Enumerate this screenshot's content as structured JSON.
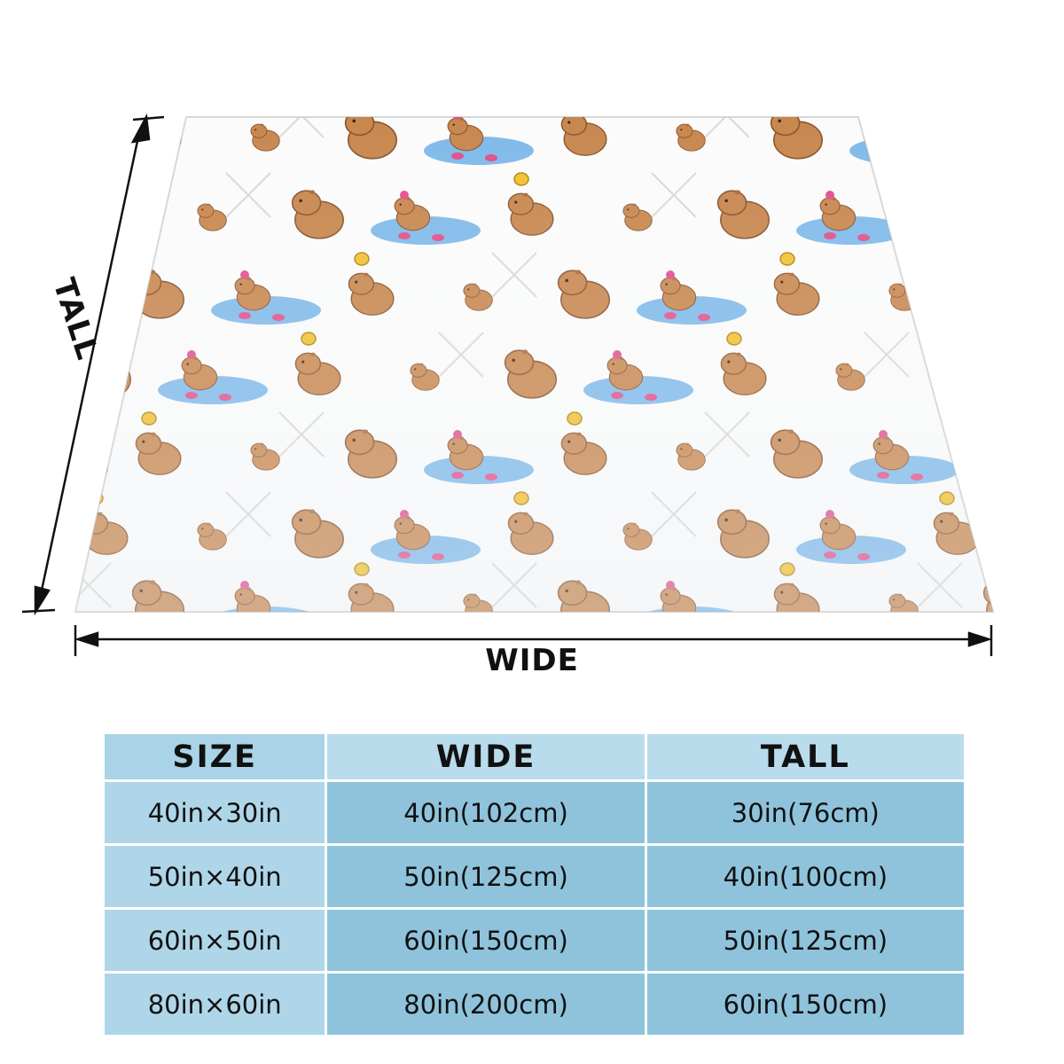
{
  "diagram": {
    "wide_label": "WIDE",
    "tall_label": "TALL",
    "pattern_motifs": [
      "capybara",
      "bird",
      "flower",
      "water-pool",
      "grass"
    ]
  },
  "table": {
    "headers": {
      "size": "SIZE",
      "wide": "WIDE",
      "tall": "TALL"
    },
    "rows": [
      {
        "size": "40in×30in",
        "wide": "40in(102cm)",
        "tall": "30in(76cm)"
      },
      {
        "size": "50in×40in",
        "wide": "50in(125cm)",
        "tall": "40in(100cm)"
      },
      {
        "size": "60in×50in",
        "wide": "60in(150cm)",
        "tall": "50in(125cm)"
      },
      {
        "size": "80in×60in",
        "wide": "80in(200cm)",
        "tall": "60in(150cm)"
      }
    ],
    "colors": {
      "header_light": "#b9dced",
      "row_dark": "#8fc3dc",
      "size_col": "#aed6e8"
    }
  },
  "colors": {
    "capybara": "#c8874f",
    "water": "#6aaee6",
    "flower": "#e0508c",
    "bird": "#f2c12e"
  }
}
